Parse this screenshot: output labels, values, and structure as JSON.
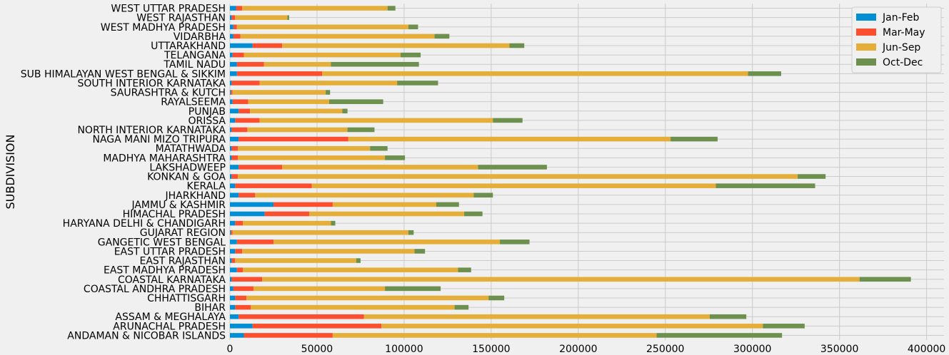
{
  "chart_data": {
    "type": "bar",
    "orientation": "horizontal",
    "stacked": true,
    "ylabel": "SUBDIVISION",
    "xlabel": "",
    "xlim": [
      0,
      410000
    ],
    "xticks": [
      0,
      50000,
      100000,
      150000,
      200000,
      250000,
      300000,
      350000,
      400000
    ],
    "xtick_labels": [
      "0",
      "50000",
      "100000",
      "150000",
      "200000",
      "250000",
      "300000",
      "350000",
      "400000"
    ],
    "grid": true,
    "legend_position": "top-right",
    "categories": [
      "ANDAMAN & NICOBAR ISLANDS",
      "ARUNACHAL PRADESH",
      "ASSAM & MEGHALAYA",
      "BIHAR",
      "CHHATTISGARH",
      "COASTAL ANDHRA PRADESH",
      "COASTAL KARNATAKA",
      "EAST MADHYA PRADESH",
      "EAST RAJASTHAN",
      "EAST UTTAR PRADESH",
      "GANGETIC WEST BENGAL",
      "GUJARAT REGION",
      "HARYANA DELHI & CHANDIGARH",
      "HIMACHAL PRADESH",
      "JAMMU & KASHMIR",
      "JHARKHAND",
      "KERALA",
      "KONKAN & GOA",
      "LAKSHADWEEP",
      "MADHYA MAHARASHTRA",
      "MATATHWADA",
      "NAGA MANI MIZO TRIPURA",
      "NORTH INTERIOR KARNATAKA",
      "ORISSA",
      "PUNJAB",
      "RAYALSEEMA",
      "SAURASHTRA & KUTCH",
      "SOUTH INTERIOR KARNATAKA",
      "SUB HIMALAYAN WEST BENGAL & SIKKIM",
      "TAMIL NADU",
      "TELANGANA",
      "UTTARAKHAND",
      "VIDARBHA",
      "WEST MADHYA PRADESH",
      "WEST RAJASTHAN",
      "WEST UTTAR PRADESH"
    ],
    "series": [
      {
        "name": "Jan-Feb",
        "color": "#008fd5",
        "values": [
          8000,
          13000,
          5000,
          3000,
          3000,
          2000,
          1000,
          4000,
          1000,
          3000,
          4000,
          500,
          3000,
          20000,
          25000,
          5000,
          3000,
          1000,
          5000,
          1000,
          1000,
          5000,
          1000,
          3000,
          5000,
          1500,
          500,
          1000,
          4000,
          4000,
          1500,
          13000,
          2000,
          2000,
          1000,
          3500
        ]
      },
      {
        "name": "Mar-May",
        "color": "#fc4f30",
        "values": [
          51000,
          74000,
          72000,
          9000,
          6500,
          11500,
          17500,
          3500,
          2000,
          4000,
          21000,
          1000,
          4500,
          25500,
          34000,
          9500,
          44000,
          3500,
          25000,
          3500,
          3500,
          63000,
          9000,
          14000,
          6500,
          9000,
          1000,
          16000,
          49000,
          15500,
          6500,
          17000,
          4000,
          2000,
          2000,
          3500
        ]
      },
      {
        "name": "Jun-Sep",
        "color": "#e5ae38",
        "values": [
          186000,
          219000,
          198500,
          117000,
          139000,
          75500,
          343000,
          123500,
          69500,
          99000,
          130000,
          101000,
          50500,
          89000,
          59500,
          125500,
          232000,
          321500,
          112500,
          84500,
          76000,
          185000,
          57500,
          134000,
          53000,
          46500,
          53500,
          79000,
          244500,
          38500,
          90000,
          130500,
          111500,
          98500,
          30000,
          83500
        ]
      },
      {
        "name": "Oct-Dec",
        "color": "#6d904f",
        "values": [
          72000,
          24000,
          21000,
          8000,
          9000,
          32000,
          29500,
          7500,
          2500,
          6000,
          17000,
          3000,
          2500,
          10500,
          13000,
          11000,
          57000,
          16000,
          39500,
          11500,
          10000,
          27000,
          15500,
          17000,
          3000,
          31000,
          2500,
          23500,
          19000,
          50500,
          11500,
          8500,
          8500,
          5500,
          1000,
          4500
        ]
      }
    ]
  }
}
